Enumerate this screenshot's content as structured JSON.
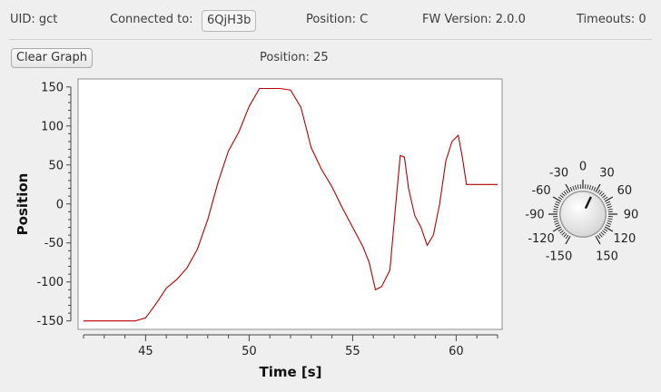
{
  "status": {
    "uid": "UID:  gct",
    "connected_label": "Connected to:",
    "connected_value": "6QjH3b",
    "position": "Position:  C",
    "fw": "FW Version:  2.0.0",
    "timeouts": "Timeouts:  0"
  },
  "toolbar": {
    "clear_label": "Clear Graph"
  },
  "position_readout": "Position: 25",
  "knob": {
    "value": 25,
    "labels": [
      "-150",
      "-120",
      "-90",
      "-60",
      "-30",
      "0",
      "30",
      "60",
      "90",
      "120",
      "150"
    ]
  },
  "chart_data": {
    "type": "line",
    "xlabel": "Time [s]",
    "ylabel": "Position",
    "xlim": [
      42,
      62
    ],
    "ylim": [
      -155,
      155
    ],
    "xticks": [
      "45",
      "50",
      "55",
      "60"
    ],
    "yticks": [
      "150",
      "100",
      "50",
      "0",
      "-50",
      "-100",
      "-150"
    ],
    "color": "#b40000",
    "series": [
      {
        "x": [
          42.0,
          44.5,
          45.0,
          45.5,
          46.0,
          46.5,
          47.0,
          47.5,
          48.0,
          48.5,
          49.0,
          49.5,
          50.0,
          50.5,
          51.0,
          51.5,
          52.0,
          52.5,
          53.0,
          53.5,
          54.0,
          54.5,
          55.0,
          55.5,
          55.8,
          56.1,
          56.4,
          56.8,
          57.1,
          57.3,
          57.5,
          57.7,
          58.0,
          58.3,
          58.6,
          58.9,
          59.2,
          59.5,
          59.8,
          60.1,
          60.3,
          60.5,
          60.7,
          61.0,
          61.5,
          62.0
        ],
        "y": [
          -150,
          -150,
          -146,
          -128,
          -108,
          -97,
          -82,
          -58,
          -20,
          28,
          68,
          92,
          125,
          148,
          148,
          148,
          146,
          124,
          72,
          44,
          22,
          -5,
          -30,
          -55,
          -75,
          -110,
          -106,
          -85,
          5,
          62,
          60,
          20,
          -15,
          -30,
          -53,
          -40,
          0,
          55,
          80,
          88,
          60,
          25,
          25,
          25,
          25,
          25
        ]
      }
    ]
  }
}
